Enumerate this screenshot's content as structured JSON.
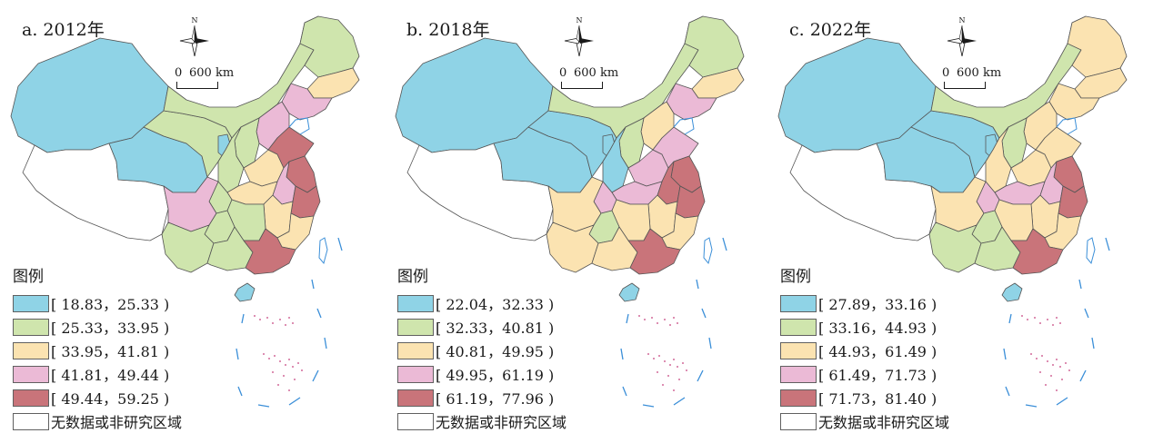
{
  "colors": {
    "class1": "#8fd3e6",
    "class2": "#cfe5ad",
    "class3": "#fbe3b1",
    "class4": "#ebbad6",
    "class5": "#c9747a",
    "nodata": "#ffffff",
    "border": "#555555"
  },
  "compass_label": "N",
  "scale": {
    "zero": "0",
    "distance": "600 km"
  },
  "legend_title": "图例",
  "panels": [
    {
      "title": "a. 2012年",
      "legend": [
        {
          "label": "[ 18.83，25.33 )",
          "color": "#8fd3e6"
        },
        {
          "label": "[ 25.33，33.95 )",
          "color": "#cfe5ad"
        },
        {
          "label": "[ 33.95，41.81 )",
          "color": "#fbe3b1"
        },
        {
          "label": "[ 41.81，49.44 )",
          "color": "#ebbad6"
        },
        {
          "label": "[ 49.44，59.25 )",
          "color": "#c9747a"
        },
        {
          "label": "无数据或非研究区域",
          "color": "#ffffff"
        }
      ],
      "regions": {
        "xinjiang": "class1",
        "tibet": "class0",
        "qinghai": "class1",
        "gansu": "class2",
        "inner_mongolia": "class2",
        "heilongjiang": "class2",
        "jilin": "class3",
        "liaoning": "class4",
        "beijing_hebei": "class4",
        "shanxi": "class2",
        "shaanxi": "class2",
        "ningxia": "class1",
        "sichuan": "class4",
        "chongqing": "class2",
        "yunnan": "class2",
        "guizhou": "class2",
        "guangxi": "class2",
        "guangdong": "class5",
        "hunan": "class2",
        "hubei": "class3",
        "henan": "class3",
        "shandong": "class5",
        "jiangsu": "class5",
        "anhui": "class4",
        "zhejiang": "class5",
        "jiangxi": "class3",
        "fujian": "class3",
        "hainan": "class1"
      }
    },
    {
      "title": "b. 2018年",
      "legend": [
        {
          "label": "[ 22.04，32.33 )",
          "color": "#8fd3e6"
        },
        {
          "label": "[ 32.33，40.81 )",
          "color": "#cfe5ad"
        },
        {
          "label": "[ 40.81，49.95 )",
          "color": "#fbe3b1"
        },
        {
          "label": "[ 49.95，61.19 )",
          "color": "#ebbad6"
        },
        {
          "label": "[ 61.19，77.96 )",
          "color": "#c9747a"
        },
        {
          "label": "无数据或非研究区域",
          "color": "#ffffff"
        }
      ],
      "regions": {
        "xinjiang": "class1",
        "tibet": "class0",
        "qinghai": "class1",
        "gansu": "class1",
        "inner_mongolia": "class2",
        "heilongjiang": "class2",
        "jilin": "class3",
        "liaoning": "class4",
        "beijing_hebei": "class3",
        "shanxi": "class2",
        "shaanxi": "class1",
        "ningxia": "class1",
        "sichuan": "class3",
        "chongqing": "class4",
        "yunnan": "class3",
        "guizhou": "class2",
        "guangxi": "class3",
        "guangdong": "class5",
        "hunan": "class3",
        "hubei": "class4",
        "henan": "class4",
        "shandong": "class4",
        "jiangsu": "class5",
        "anhui": "class5",
        "zhejiang": "class5",
        "jiangxi": "class3",
        "fujian": "class3",
        "hainan": "class1"
      }
    },
    {
      "title": "c. 2022年",
      "legend": [
        {
          "label": "[ 27.89，33.16 )",
          "color": "#8fd3e6"
        },
        {
          "label": "[ 33.16，44.93 )",
          "color": "#cfe5ad"
        },
        {
          "label": "[ 44.93，61.49 )",
          "color": "#fbe3b1"
        },
        {
          "label": "[ 61.49，71.73 )",
          "color": "#ebbad6"
        },
        {
          "label": "[ 71.73，81.40 )",
          "color": "#c9747a"
        },
        {
          "label": "无数据或非研究区域",
          "color": "#ffffff"
        }
      ],
      "regions": {
        "xinjiang": "class1",
        "tibet": "class0",
        "qinghai": "class1",
        "gansu": "class1",
        "inner_mongolia": "class2",
        "heilongjiang": "class3",
        "jilin": "class3",
        "liaoning": "class3",
        "beijing_hebei": "class3",
        "shanxi": "class2",
        "shaanxi": "class3",
        "ningxia": "class1",
        "sichuan": "class3",
        "chongqing": "class4",
        "yunnan": "class2",
        "guizhou": "class2",
        "guangxi": "class2",
        "guangdong": "class5",
        "hunan": "class3",
        "hubei": "class4",
        "henan": "class3",
        "shandong": "class3",
        "jiangsu": "class5",
        "anhui": "class4",
        "zhejiang": "class5",
        "jiangxi": "class3",
        "fujian": "class3",
        "hainan": "class1"
      }
    }
  ]
}
